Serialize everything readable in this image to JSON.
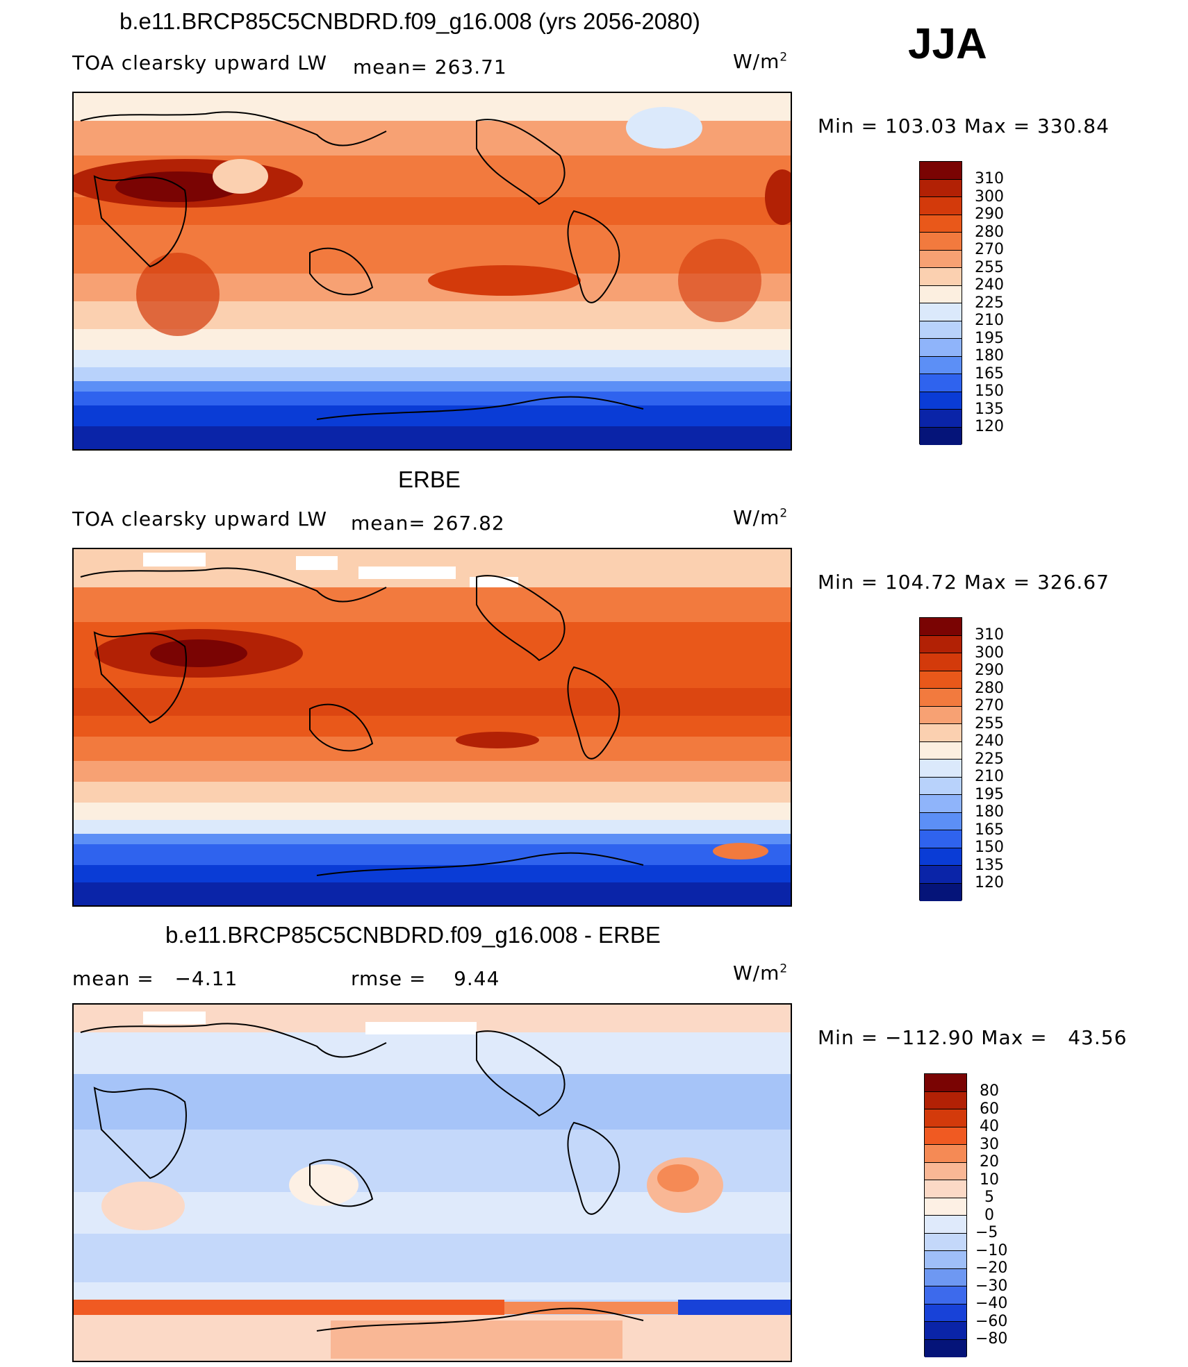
{
  "season": "JJA",
  "units": "W/m",
  "units_sup": "2",
  "panels": [
    {
      "title": "b.e11.BRCP85C5CNBDRD.f09_g16.008 (yrs 2056-2080)",
      "variable": "TOA clearsky upward LW",
      "stat1": "mean= 263.71",
      "stat2": "",
      "minmax": "Min = 103.03 Max = 330.84",
      "levels": [
        "310",
        "300",
        "290",
        "280",
        "270",
        "255",
        "240",
        "225",
        "210",
        "195",
        "180",
        "165",
        "150",
        "135",
        "120"
      ]
    },
    {
      "title": "ERBE",
      "variable": "TOA clearsky upward LW",
      "stat1": "mean= 267.82",
      "stat2": "",
      "minmax": "Min = 104.72 Max = 326.67",
      "levels": [
        "310",
        "300",
        "290",
        "280",
        "270",
        "255",
        "240",
        "225",
        "210",
        "195",
        "180",
        "165",
        "150",
        "135",
        "120"
      ]
    },
    {
      "title": "b.e11.BRCP85C5CNBDRD.f09_g16.008 - ERBE",
      "variable": "",
      "stat1": "mean =   −4.11",
      "stat2": "rmse =    9.44",
      "minmax": "Min = −112.90 Max =   43.56",
      "levels": [
        "80",
        "60",
        "40",
        "30",
        "20",
        "10",
        "5",
        "0",
        "−5",
        "−10",
        "−20",
        "−30",
        "−40",
        "−60",
        "−80"
      ]
    }
  ],
  "colors": {
    "abs_scale": [
      "#7a0403",
      "#b22105",
      "#d33a0b",
      "#e9581a",
      "#f27a3e",
      "#f7a173",
      "#fbd0b0",
      "#fcefe0",
      "#dbe9fb",
      "#b8d2fb",
      "#8fb4fa",
      "#5c8ff6",
      "#2f63ee",
      "#0a3cd6",
      "#0a24a8",
      "#051479"
    ],
    "diff_scale": [
      "#7a0403",
      "#b22105",
      "#d33a0b",
      "#f05a22",
      "#f58a55",
      "#f9b795",
      "#fbd9c6",
      "#fdf0e4",
      "#dfeafb",
      "#c4d8fa",
      "#9fbff8",
      "#6e98f2",
      "#3d6aec",
      "#1842d8",
      "#0a24a8",
      "#051479"
    ]
  }
}
